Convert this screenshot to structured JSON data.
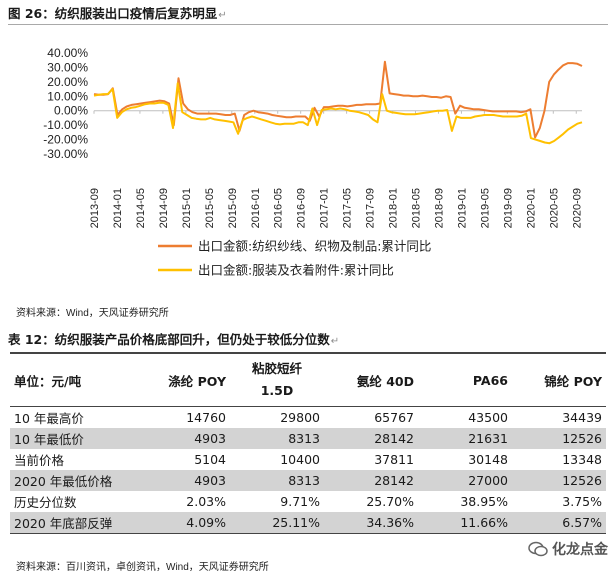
{
  "figure": {
    "title": "图 26：纺织服装出口疫情后复苏明显",
    "source": "资料来源：Wind，天风证券研究所"
  },
  "chart_data": {
    "type": "line",
    "title": "",
    "xlabel": "",
    "ylabel": "",
    "ylim": [
      -30,
      40
    ],
    "yticks": [
      "40.00%",
      "30.00%",
      "20.00%",
      "10.00%",
      "0.00%",
      "-10.00%",
      "-20.00%",
      "-30.00%"
    ],
    "x_ticklabels": [
      "2013-09",
      "2014-01",
      "2014-05",
      "2014-09",
      "2015-01",
      "2015-05",
      "2015-09",
      "2016-01",
      "2016-05",
      "2016-09",
      "2017-01",
      "2017-05",
      "2017-09",
      "2018-01",
      "2018-05",
      "2018-09",
      "2019-01",
      "2019-05",
      "2019-09",
      "2020-01",
      "2020-05",
      "2020-09"
    ],
    "x_start": "2013-09",
    "x_end": "2020-10",
    "legend_position": "bottom",
    "grid": false,
    "series": [
      {
        "name": "出口金额:纺织纱线、织物及制品:累计同比",
        "color": "#ED7D31",
        "values": [
          11.5,
          11,
          11,
          11.5,
          15.5,
          -3,
          1,
          3,
          4,
          4.5,
          5,
          5.5,
          6,
          6.5,
          7,
          6.5,
          5,
          -10,
          22.5,
          5,
          1,
          -1,
          -2,
          -2,
          -2,
          -2,
          -2,
          -2.5,
          -3,
          -3,
          -2,
          -14,
          -3,
          -1,
          0,
          -1,
          -1.5,
          -2,
          -3,
          -3.5,
          -4,
          -4.5,
          -4.5,
          -4,
          -4,
          -4,
          -7,
          2,
          -4,
          2.5,
          2.5,
          3,
          3.5,
          3.5,
          3,
          3.5,
          4,
          4,
          4.5,
          4.5,
          4.5,
          5,
          34,
          12,
          11.5,
          11,
          10.5,
          10.5,
          10,
          10,
          10.5,
          10,
          9.5,
          9.5,
          9,
          10,
          9.5,
          -2,
          3.5,
          2,
          1.5,
          1,
          1,
          0.5,
          0,
          -0.5,
          -0.5,
          -0.5,
          -0.5,
          -0.5,
          -0.5,
          -1,
          -0.5,
          1,
          -18.5,
          -12,
          0,
          20,
          25,
          28.5,
          31.5,
          33,
          33,
          32.5,
          31
        ]
      },
      {
        "name": "出口金额:服装及衣着附件:累计同比",
        "color": "#FFC000",
        "values": [
          10.5,
          11,
          11.5,
          11.5,
          15,
          -5,
          -1,
          1,
          2,
          2.5,
          3.5,
          4.5,
          5,
          5,
          5.5,
          5.5,
          4,
          -12,
          19,
          -1,
          -3,
          -5,
          -5.5,
          -6,
          -6,
          -5,
          -6,
          -6.5,
          -7,
          -7.5,
          -8,
          -16,
          -6.5,
          -5,
          -4,
          -5,
          -6,
          -7,
          -8,
          -9,
          -9.5,
          -9,
          -9,
          -9,
          -8,
          -8,
          -10,
          1.5,
          -10,
          0.5,
          1,
          1.5,
          1,
          1.5,
          1,
          0,
          -0.5,
          -1,
          -2,
          -3,
          -6,
          -8,
          11.5,
          0,
          -1,
          -1.5,
          -2,
          -2.5,
          -2.5,
          -2.5,
          -2,
          -1.5,
          -1,
          -0.5,
          0,
          0,
          0.5,
          -14,
          -4,
          -5,
          -5,
          -5,
          -4,
          -3.5,
          -3,
          -3,
          -3,
          -3.5,
          -4,
          -4,
          -4,
          -4,
          -3.5,
          -2,
          -19,
          -20,
          -21,
          -22,
          -22.5,
          -21,
          -18.5,
          -16,
          -13,
          -11,
          -9,
          -8
        ]
      }
    ]
  },
  "table": {
    "title": "表 12：纺织服装产品价格底部回升，但仍处于较低分位数",
    "columns": [
      "单位：元/吨",
      "涤纶 POY",
      "粘胶短纤 1.5D",
      "氨纶 40D",
      "PA66",
      "锦纶 POY"
    ],
    "rows": [
      [
        "10 年最高价",
        "14760",
        "29800",
        "65767",
        "43500",
        "34439"
      ],
      [
        "10 年最低价",
        "4903",
        "8313",
        "28142",
        "21631",
        "12526"
      ],
      [
        "当前价格",
        "5104",
        "10400",
        "37811",
        "30148",
        "13348"
      ],
      [
        "2020 年最低价格",
        "4903",
        "8313",
        "28142",
        "27000",
        "12526"
      ],
      [
        "历史分位数",
        "2.03%",
        "9.71%",
        "25.70%",
        "38.95%",
        "3.75%"
      ],
      [
        "2020 年底部反弹",
        "4.09%",
        "25.11%",
        "34.36%",
        "11.66%",
        "6.57%"
      ]
    ],
    "source": "资料来源：百川资讯，卓创资讯，Wind，天风证券研究所"
  },
  "watermark": "化龙点金"
}
